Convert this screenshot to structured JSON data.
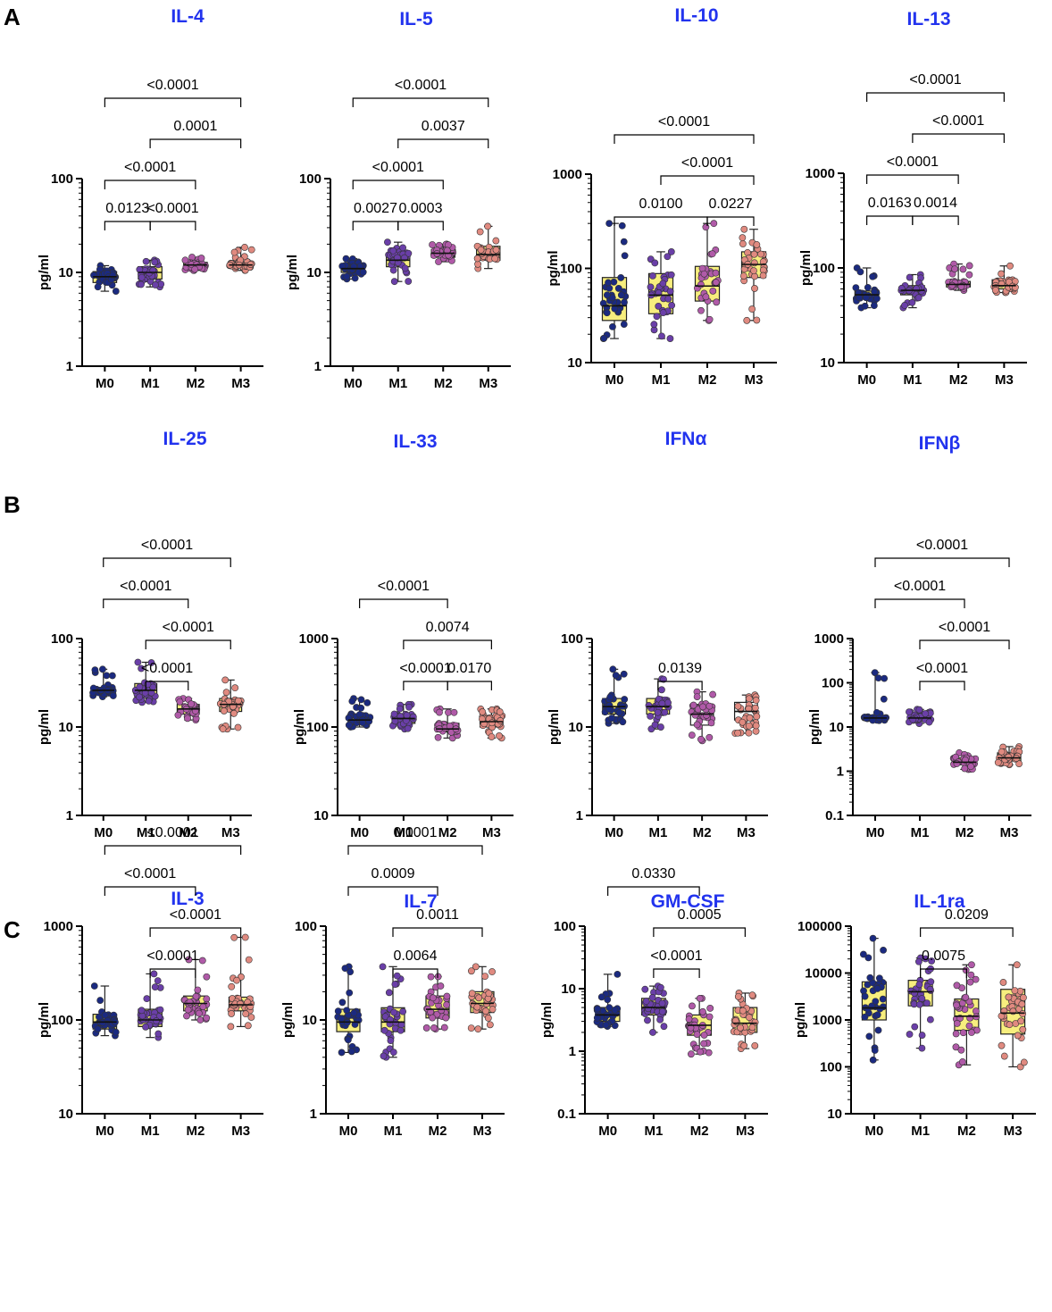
{
  "colors": {
    "title": "#2233ee",
    "box_fill": "#f7ee7e",
    "box_fill_white": "#ffffff",
    "axis": "#000000",
    "group_dots": [
      "#1b2a80",
      "#6a3fa8",
      "#b05aa8",
      "#e08a80"
    ],
    "dot_stroke": "#333333"
  },
  "panels": [
    {
      "label": "A"
    },
    {
      "label": "B"
    },
    {
      "label": "C"
    }
  ],
  "chart_data": [
    {
      "type": "box",
      "title": "IL-4",
      "ylabel": "pg/ml",
      "yscale": "log",
      "ylim": [
        1,
        100
      ],
      "yticks": [
        "1",
        "10",
        "100"
      ],
      "categories": [
        "M0",
        "M1",
        "M2",
        "M3"
      ],
      "boxes": [
        {
          "min": 6.3,
          "q1": 7.8,
          "median": 9.0,
          "q3": 10.2,
          "max": 11.8,
          "fill": "yellow"
        },
        {
          "min": 7.0,
          "q1": 8.5,
          "median": 10.0,
          "q3": 11.5,
          "max": 13.5,
          "fill": "yellow"
        },
        {
          "min": 10.5,
          "q1": 11.2,
          "median": 12.0,
          "q3": 12.8,
          "max": 14.5,
          "fill": "yellow"
        },
        {
          "min": 10.5,
          "q1": 11.3,
          "median": 12.0,
          "q3": 13.0,
          "max": 18.5,
          "fill": "yellow"
        }
      ],
      "comparisons": [
        {
          "a": 0,
          "b": 3,
          "p": "<0.0001"
        },
        {
          "a": 0,
          "b": 2,
          "p": "<0.0001"
        },
        {
          "a": 1,
          "b": 2,
          "p": "<0.0001"
        },
        {
          "a": 0,
          "b": 1,
          "p": "0.0123"
        },
        {
          "a": 1,
          "b": 3,
          "p": "0.0001"
        }
      ]
    },
    {
      "type": "box",
      "title": "IL-5",
      "ylabel": "pg/ml",
      "yscale": "log",
      "ylim": [
        1,
        100
      ],
      "yticks": [
        "1",
        "10",
        "100"
      ],
      "categories": [
        "M0",
        "M1",
        "M2",
        "M3"
      ],
      "boxes": [
        {
          "min": 8.5,
          "q1": 10.0,
          "median": 11.0,
          "q3": 12.0,
          "max": 14.0,
          "fill": "yellow"
        },
        {
          "min": 8.0,
          "q1": 11.5,
          "median": 13.5,
          "q3": 16.0,
          "max": 21.0,
          "fill": "yellow"
        },
        {
          "min": 13.0,
          "q1": 14.5,
          "median": 16.0,
          "q3": 17.5,
          "max": 20.0,
          "fill": "yellow"
        },
        {
          "min": 11.0,
          "q1": 13.5,
          "median": 15.5,
          "q3": 19.0,
          "max": 31.0,
          "fill": "yellow"
        }
      ],
      "comparisons": [
        {
          "a": 0,
          "b": 3,
          "p": "<0.0001"
        },
        {
          "a": 0,
          "b": 2,
          "p": "<0.0001"
        },
        {
          "a": 1,
          "b": 2,
          "p": "0.0003"
        },
        {
          "a": 0,
          "b": 1,
          "p": "0.0027"
        },
        {
          "a": 1,
          "b": 3,
          "p": "0.0037"
        }
      ]
    },
    {
      "type": "box",
      "title": "IL-10",
      "ylabel": "pg/ml",
      "yscale": "log",
      "ylim": [
        10,
        1000
      ],
      "yticks": [
        "10",
        "100",
        "1000"
      ],
      "categories": [
        "M0",
        "M1",
        "M2",
        "M3"
      ],
      "boxes": [
        {
          "min": 18,
          "q1": 28,
          "median": 40,
          "q3": 80,
          "max": 300,
          "fill": "yellow"
        },
        {
          "min": 18,
          "q1": 33,
          "median": 52,
          "q3": 88,
          "max": 150,
          "fill": "yellow"
        },
        {
          "min": 28,
          "q1": 45,
          "median": 65,
          "q3": 105,
          "max": 300,
          "fill": "yellow"
        },
        {
          "min": 28,
          "q1": 80,
          "median": 110,
          "q3": 150,
          "max": 260,
          "fill": "yellow"
        }
      ],
      "comparisons": [
        {
          "a": 0,
          "b": 3,
          "p": "<0.0001"
        },
        {
          "a": 1,
          "b": 3,
          "p": "<0.0001"
        },
        {
          "a": 0,
          "b": 2,
          "p": "0.0100"
        },
        {
          "a": 2,
          "b": 3,
          "p": "0.0227"
        }
      ]
    },
    {
      "type": "box",
      "title": "IL-13",
      "ylabel": "pg/ml",
      "yscale": "log",
      "ylim": [
        10,
        1000
      ],
      "yticks": [
        "10",
        "100",
        "1000"
      ],
      "categories": [
        "M0",
        "M1",
        "M2",
        "M3"
      ],
      "boxes": [
        {
          "min": 38,
          "q1": 47,
          "median": 52,
          "q3": 57,
          "max": 100,
          "fill": "yellow"
        },
        {
          "min": 38,
          "q1": 52,
          "median": 58,
          "q3": 65,
          "max": 85,
          "fill": "yellow"
        },
        {
          "min": 58,
          "q1": 63,
          "median": 67,
          "q3": 72,
          "max": 110,
          "fill": "yellow"
        },
        {
          "min": 55,
          "q1": 60,
          "median": 65,
          "q3": 75,
          "max": 105,
          "fill": "yellow"
        }
      ],
      "comparisons": [
        {
          "a": 0,
          "b": 3,
          "p": "<0.0001"
        },
        {
          "a": 0,
          "b": 2,
          "p": "<0.0001"
        },
        {
          "a": 1,
          "b": 2,
          "p": "0.0014"
        },
        {
          "a": 0,
          "b": 1,
          "p": "0.0163"
        },
        {
          "a": 1,
          "b": 3,
          "p": "<0.0001"
        }
      ]
    },
    {
      "type": "box",
      "title": "IL-25",
      "ylabel": "pg/ml",
      "yscale": "log",
      "ylim": [
        1,
        100
      ],
      "yticks": [
        "1",
        "10",
        "100"
      ],
      "categories": [
        "M0",
        "M1",
        "M2",
        "M3"
      ],
      "boxes": [
        {
          "min": 22,
          "q1": 24,
          "median": 26,
          "q3": 28,
          "max": 45,
          "fill": "yellow"
        },
        {
          "min": 19,
          "q1": 22,
          "median": 26,
          "q3": 31,
          "max": 54,
          "fill": "yellow"
        },
        {
          "min": 12,
          "q1": 14,
          "median": 16,
          "q3": 18,
          "max": 21,
          "fill": "yellow"
        },
        {
          "min": 9.5,
          "q1": 15,
          "median": 18,
          "q3": 21,
          "max": 34,
          "fill": "yellow"
        }
      ],
      "comparisons": [
        {
          "a": 0,
          "b": 3,
          "p": "<0.0001"
        },
        {
          "a": 1,
          "b": 3,
          "p": "<0.0001"
        },
        {
          "a": 0,
          "b": 2,
          "p": "<0.0001"
        },
        {
          "a": 1,
          "b": 2,
          "p": "<0.0001"
        }
      ]
    },
    {
      "type": "box",
      "title": "IL-33",
      "ylabel": "pg/ml",
      "yscale": "log",
      "ylim": [
        10,
        1000
      ],
      "yticks": [
        "10",
        "100",
        "1000"
      ],
      "categories": [
        "M0",
        "M1",
        "M2",
        "M3"
      ],
      "boxes": [
        {
          "min": 100,
          "q1": 110,
          "median": 120,
          "q3": 135,
          "max": 210,
          "fill": "yellow"
        },
        {
          "min": 95,
          "q1": 110,
          "median": 125,
          "q3": 140,
          "max": 180,
          "fill": "yellow"
        },
        {
          "min": 75,
          "q1": 88,
          "median": 95,
          "q3": 110,
          "max": 160,
          "fill": "yellow"
        },
        {
          "min": 75,
          "q1": 100,
          "median": 115,
          "q3": 135,
          "max": 160,
          "fill": "yellow"
        }
      ],
      "comparisons": [
        {
          "a": 1,
          "b": 3,
          "p": "0.0074"
        },
        {
          "a": 0,
          "b": 2,
          "p": "<0.0001"
        },
        {
          "a": 2,
          "b": 3,
          "p": "0.0170"
        },
        {
          "a": 1,
          "b": 2,
          "p": "<0.0001"
        }
      ]
    },
    {
      "type": "box",
      "title": "IFNα",
      "ylabel": "pg/ml",
      "yscale": "log",
      "ylim": [
        1,
        100
      ],
      "yticks": [
        "1",
        "10",
        "100"
      ],
      "categories": [
        "M0",
        "M1",
        "M2",
        "M3"
      ],
      "boxes": [
        {
          "min": 11,
          "q1": 14,
          "median": 17,
          "q3": 21,
          "max": 45,
          "fill": "yellow"
        },
        {
          "min": 9.5,
          "q1": 14,
          "median": 17,
          "q3": 21,
          "max": 35,
          "fill": "yellow"
        },
        {
          "min": 7,
          "q1": 10.5,
          "median": 14,
          "q3": 18,
          "max": 25,
          "fill": "white"
        },
        {
          "min": 8.5,
          "q1": 12,
          "median": 15,
          "q3": 19,
          "max": 23,
          "fill": "white"
        }
      ],
      "comparisons": [
        {
          "a": 1,
          "b": 2,
          "p": "0.0139"
        }
      ]
    },
    {
      "type": "box",
      "title": "IFNβ",
      "ylabel": "pg/ml",
      "yscale": "log",
      "ylim": [
        0.1,
        1000
      ],
      "yticks": [
        "0.1",
        "1",
        "10",
        "100",
        "1000"
      ],
      "categories": [
        "M0",
        "M1",
        "M2",
        "M3"
      ],
      "boxes": [
        {
          "min": 14,
          "q1": 15,
          "median": 16,
          "q3": 17,
          "max": 170,
          "fill": "yellow"
        },
        {
          "min": 12,
          "q1": 14,
          "median": 16,
          "q3": 18,
          "max": 25,
          "fill": "yellow"
        },
        {
          "min": 1.1,
          "q1": 1.4,
          "median": 1.6,
          "q3": 2.0,
          "max": 2.6,
          "fill": "yellow"
        },
        {
          "min": 1.4,
          "q1": 1.7,
          "median": 2.0,
          "q3": 2.6,
          "max": 3.6,
          "fill": "yellow"
        }
      ],
      "comparisons": [
        {
          "a": 0,
          "b": 3,
          "p": "<0.0001"
        },
        {
          "a": 1,
          "b": 3,
          "p": "<0.0001"
        },
        {
          "a": 0,
          "b": 2,
          "p": "<0.0001"
        },
        {
          "a": 1,
          "b": 2,
          "p": "<0.0001"
        }
      ]
    },
    {
      "type": "box",
      "title": "IL-3",
      "ylabel": "pg/ml",
      "yscale": "log",
      "ylim": [
        10,
        1000
      ],
      "yticks": [
        "10",
        "100",
        "1000"
      ],
      "categories": [
        "M0",
        "M1",
        "M2",
        "M3"
      ],
      "boxes": [
        {
          "min": 68,
          "q1": 80,
          "median": 95,
          "q3": 115,
          "max": 230,
          "fill": "yellow"
        },
        {
          "min": 65,
          "q1": 85,
          "median": 100,
          "q3": 130,
          "max": 310,
          "fill": "yellow"
        },
        {
          "min": 100,
          "q1": 125,
          "median": 150,
          "q3": 180,
          "max": 440,
          "fill": "yellow"
        },
        {
          "min": 85,
          "q1": 125,
          "median": 145,
          "q3": 175,
          "max": 760,
          "fill": "yellow"
        }
      ],
      "comparisons": [
        {
          "a": 0,
          "b": 3,
          "p": "<0.0001"
        },
        {
          "a": 1,
          "b": 3,
          "p": "<0.0001"
        },
        {
          "a": 0,
          "b": 2,
          "p": "<0.0001"
        },
        {
          "a": 1,
          "b": 2,
          "p": "<0.0001"
        }
      ]
    },
    {
      "type": "box",
      "title": "IL-7",
      "ylabel": "pg/ml",
      "yscale": "log",
      "ylim": [
        1,
        100
      ],
      "yticks": [
        "1",
        "10",
        "100"
      ],
      "categories": [
        "M0",
        "M1",
        "M2",
        "M3"
      ],
      "boxes": [
        {
          "min": 4.5,
          "q1": 7.5,
          "median": 9.5,
          "q3": 13,
          "max": 37,
          "fill": "yellow"
        },
        {
          "min": 4,
          "q1": 7.5,
          "median": 9.5,
          "q3": 13.5,
          "max": 37,
          "fill": "yellow"
        },
        {
          "min": 8,
          "q1": 10.5,
          "median": 13,
          "q3": 18,
          "max": 29,
          "fill": "yellow"
        },
        {
          "min": 8,
          "q1": 12,
          "median": 15,
          "q3": 20,
          "max": 37,
          "fill": "yellow"
        }
      ],
      "comparisons": [
        {
          "a": 0,
          "b": 3,
          "p": "0.0001"
        },
        {
          "a": 1,
          "b": 3,
          "p": "0.0011"
        },
        {
          "a": 0,
          "b": 2,
          "p": "0.0009"
        },
        {
          "a": 1,
          "b": 2,
          "p": "0.0064"
        }
      ]
    },
    {
      "type": "box",
      "title": "GM-CSF",
      "ylabel": "pg/ml",
      "yscale": "log",
      "ylim": [
        0.1,
        100
      ],
      "yticks": [
        "0.1",
        "1",
        "10",
        "100"
      ],
      "categories": [
        "M0",
        "M1",
        "M2",
        "M3"
      ],
      "boxes": [
        {
          "min": 2.5,
          "q1": 3.0,
          "median": 3.8,
          "q3": 5.0,
          "max": 17,
          "fill": "yellow"
        },
        {
          "min": 2.0,
          "q1": 3.8,
          "median": 5.0,
          "q3": 7.0,
          "max": 11,
          "fill": "yellow"
        },
        {
          "min": 0.9,
          "q1": 1.8,
          "median": 2.6,
          "q3": 3.8,
          "max": 7,
          "fill": "yellow"
        },
        {
          "min": 1.1,
          "q1": 2.0,
          "median": 2.8,
          "q3": 5.0,
          "max": 8.5,
          "fill": "yellow"
        }
      ],
      "comparisons": [
        {
          "a": 1,
          "b": 3,
          "p": "0.0005"
        },
        {
          "a": 0,
          "b": 2,
          "p": "0.0330"
        },
        {
          "a": 1,
          "b": 2,
          "p": "<0.0001"
        }
      ]
    },
    {
      "type": "box",
      "title": "IL-1ra",
      "ylabel": "pg/ml",
      "yscale": "log",
      "ylim": [
        10,
        100000
      ],
      "yticks": [
        "10",
        "100",
        "1000",
        "10000",
        "100000"
      ],
      "categories": [
        "M0",
        "M1",
        "M2",
        "M3"
      ],
      "boxes": [
        {
          "min": 140,
          "q1": 1000,
          "median": 1800,
          "q3": 6500,
          "max": 55000,
          "fill": "yellow"
        },
        {
          "min": 250,
          "q1": 2000,
          "median": 4000,
          "q3": 7000,
          "max": 21000,
          "fill": "yellow"
        },
        {
          "min": 110,
          "q1": 600,
          "median": 1200,
          "q3": 2800,
          "max": 15000,
          "fill": "yellow"
        },
        {
          "min": 100,
          "q1": 500,
          "median": 1400,
          "q3": 4500,
          "max": 15000,
          "fill": "yellow"
        }
      ],
      "comparisons": [
        {
          "a": 1,
          "b": 3,
          "p": "0.0209"
        },
        {
          "a": 1,
          "b": 2,
          "p": "0.0075"
        }
      ]
    }
  ]
}
